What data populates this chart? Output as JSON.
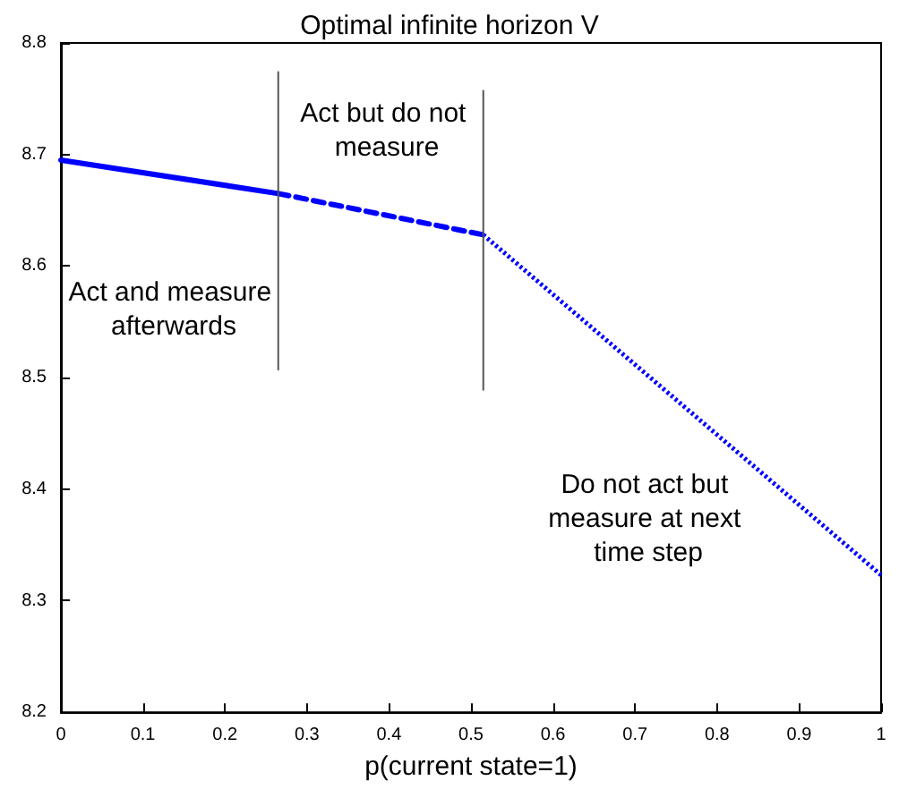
{
  "chart_data": {
    "type": "line",
    "title": "Optimal infinite horizon V",
    "xlabel": "p(current state=1)",
    "series": [
      {
        "color": "#0000ff",
        "x": [
          0,
          0.265
        ],
        "values": [
          8.695,
          8.665
        ],
        "line_style": "solid"
      },
      {
        "color": "#0000ff",
        "x": [
          0.265,
          0.515
        ],
        "values": [
          8.665,
          8.628
        ],
        "line_style": "dashed"
      },
      {
        "color": "#0000ff",
        "x": [
          0.515,
          1
        ],
        "values": [
          8.628,
          8.323
        ],
        "line_style": "dotted"
      },
      {
        "color": "#555555",
        "x": [
          0.265,
          0.265
        ],
        "values": [
          8.507,
          8.774
        ],
        "line_style": "solid"
      },
      {
        "color": "#555555",
        "x": [
          0.515,
          0.515
        ],
        "values": [
          8.489,
          8.757
        ],
        "line_style": "solid"
      }
    ],
    "annotations": [
      "Act and measure afterwards",
      "Act but do not measure",
      "Do not act but measure at next time step"
    ],
    "xlim": [
      0,
      1
    ],
    "xticks": [
      0,
      0.1,
      0.2,
      0.3,
      0.4,
      0.5,
      0.6,
      0.7,
      0.8,
      0.9,
      1
    ],
    "ylim": [
      8.2,
      8.8
    ],
    "yticks": [
      8.2,
      8.3,
      8.4,
      8.5,
      8.6,
      8.7,
      8.8
    ],
    "grid": false,
    "marker": "none"
  }
}
